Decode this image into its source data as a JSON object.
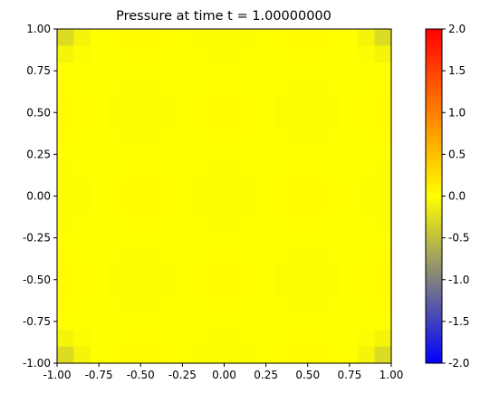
{
  "chart_data": {
    "type": "heatmap",
    "title": "Pressure at time t =     1.00000000",
    "xlim": [
      -1.0,
      1.0
    ],
    "ylim": [
      -1.0,
      1.0
    ],
    "xticks": [
      "-1.00",
      "-0.75",
      "-0.50",
      "-0.25",
      "0.00",
      "0.25",
      "0.50",
      "0.75",
      "1.00"
    ],
    "yticks": [
      "-1.00",
      "-0.75",
      "-0.50",
      "-0.25",
      "0.00",
      "0.25",
      "0.50",
      "0.75",
      "1.00"
    ],
    "grid_size": [
      20,
      20
    ],
    "field_description_values": {
      "interior_value": 0.0,
      "corner_value": -0.35
    },
    "colorbar": {
      "vmin": -2.0,
      "vmax": 2.0,
      "ticks": [
        "-2.0",
        "-1.5",
        "-1.0",
        "-0.5",
        "0.0",
        "0.5",
        "1.0",
        "1.5",
        "2.0"
      ],
      "colors": [
        {
          "value": -2.0,
          "color": "#0000ff"
        },
        {
          "value": -1.0,
          "color": "#808080"
        },
        {
          "value": 0.0,
          "color": "#ffff00"
        },
        {
          "value": 1.0,
          "color": "#ff8000"
        },
        {
          "value": 2.0,
          "color": "#ff0000"
        }
      ]
    }
  }
}
